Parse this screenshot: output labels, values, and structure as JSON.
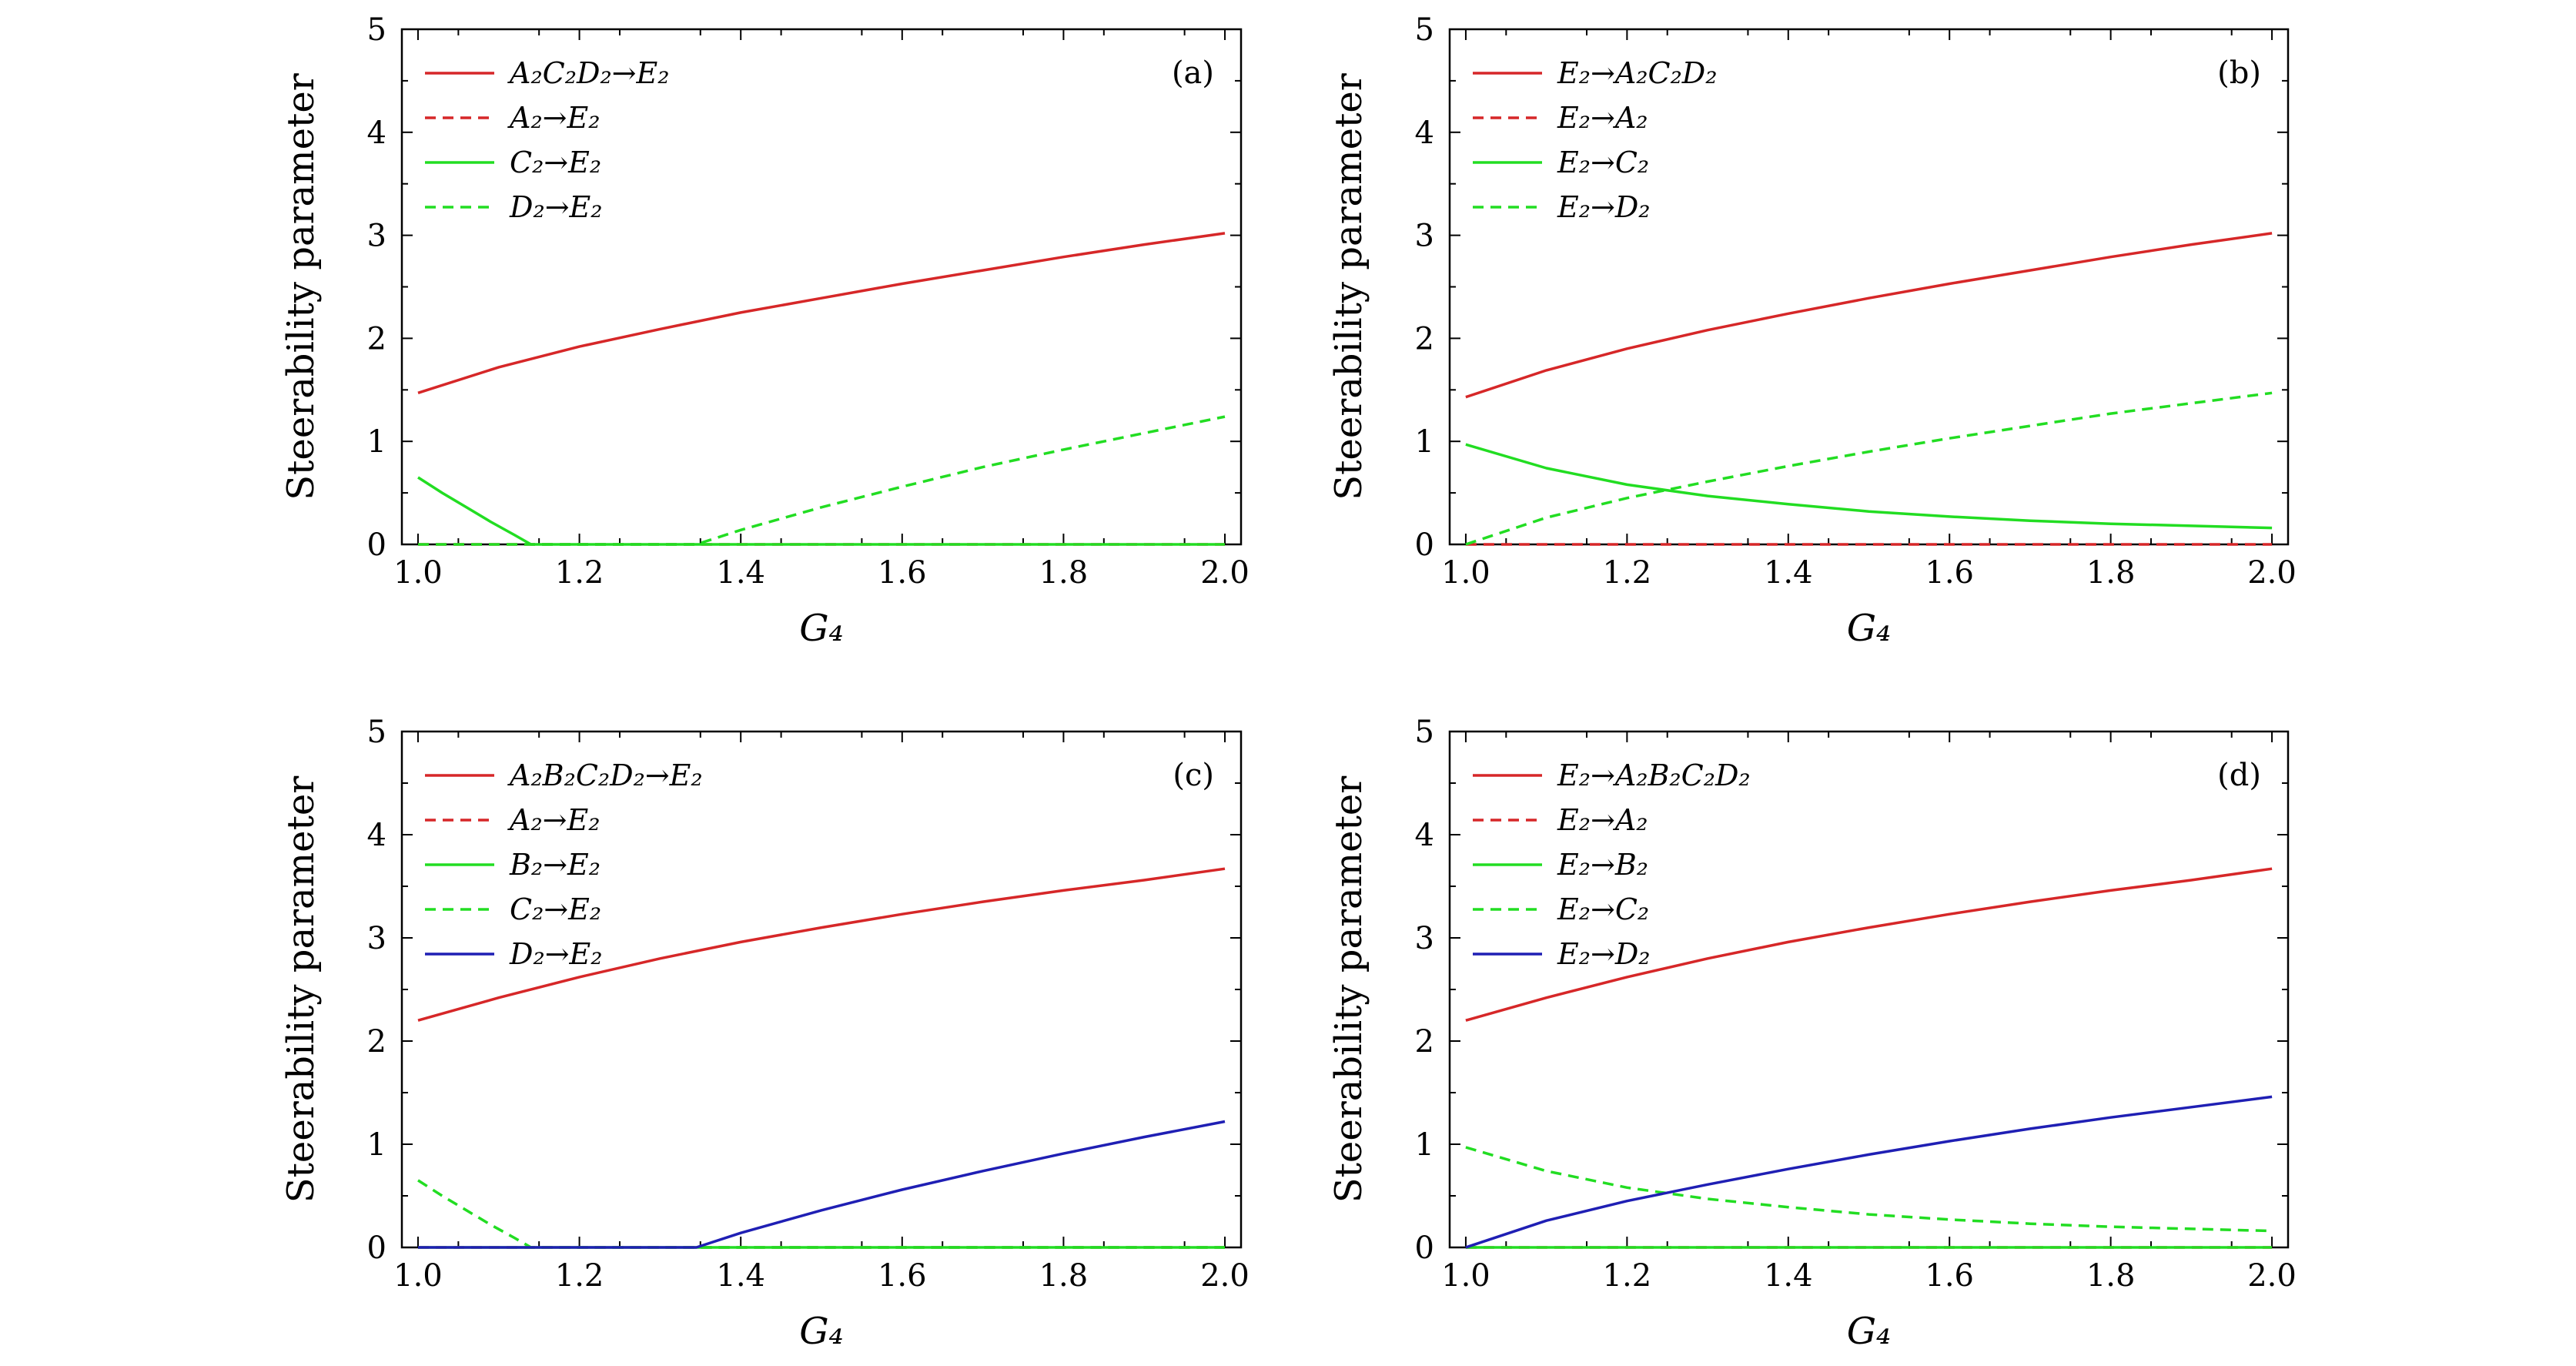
{
  "figure": {
    "ylabel": "Steerability parameter",
    "xlabel": "G₄"
  },
  "chart_data": [
    {
      "type": "line",
      "panel_label": "(a)",
      "xlabel": "G₄",
      "ylabel": "Steerability parameter",
      "xlim": [
        0.98,
        2.02
      ],
      "ylim": [
        0,
        5
      ],
      "xticks": [
        "1.0",
        "1.2",
        "1.4",
        "1.6",
        "1.8",
        "2.0"
      ],
      "yticks": [
        "0",
        "1",
        "2",
        "3",
        "4",
        "5"
      ],
      "legend_position": "top-left",
      "series": [
        {
          "name": "A₂C₂D₂→E₂",
          "color": "#d62728",
          "dash": "solid",
          "x": [
            1.0,
            1.1,
            1.2,
            1.3,
            1.4,
            1.5,
            1.6,
            1.7,
            1.8,
            1.9,
            2.0
          ],
          "y": [
            1.47,
            1.72,
            1.92,
            2.09,
            2.25,
            2.39,
            2.53,
            2.66,
            2.79,
            2.91,
            3.02
          ]
        },
        {
          "name": "A₂→E₂",
          "color": "#d62728",
          "dash": "dashed",
          "x": [
            1.0,
            2.0
          ],
          "y": [
            0.0,
            0.0
          ]
        },
        {
          "name": "C₂→E₂",
          "color": "#22dd22",
          "dash": "solid",
          "x": [
            1.0,
            1.03,
            1.06,
            1.09,
            1.12,
            1.14,
            1.2,
            1.4,
            1.6,
            1.8,
            2.0
          ],
          "y": [
            0.65,
            0.5,
            0.36,
            0.22,
            0.09,
            0.0,
            0.0,
            0.0,
            0.0,
            0.0,
            0.0
          ]
        },
        {
          "name": "D₂→E₂",
          "color": "#22dd22",
          "dash": "dashed",
          "x": [
            1.0,
            1.2,
            1.345,
            1.4,
            1.5,
            1.6,
            1.7,
            1.8,
            1.9,
            2.0
          ],
          "y": [
            0.0,
            0.0,
            0.0,
            0.14,
            0.36,
            0.56,
            0.75,
            0.92,
            1.08,
            1.24
          ]
        }
      ]
    },
    {
      "type": "line",
      "panel_label": "(b)",
      "xlabel": "G₄",
      "ylabel": "Steerability parameter",
      "xlim": [
        0.98,
        2.02
      ],
      "ylim": [
        0,
        5
      ],
      "xticks": [
        "1.0",
        "1.2",
        "1.4",
        "1.6",
        "1.8",
        "2.0"
      ],
      "yticks": [
        "0",
        "1",
        "2",
        "3",
        "4",
        "5"
      ],
      "legend_position": "top-left",
      "series": [
        {
          "name": "E₂→A₂C₂D₂",
          "color": "#d62728",
          "dash": "solid",
          "x": [
            1.0,
            1.1,
            1.2,
            1.3,
            1.4,
            1.5,
            1.6,
            1.7,
            1.8,
            1.9,
            2.0
          ],
          "y": [
            1.43,
            1.69,
            1.9,
            2.08,
            2.24,
            2.39,
            2.53,
            2.66,
            2.79,
            2.91,
            3.02
          ]
        },
        {
          "name": "E₂→A₂",
          "color": "#d62728",
          "dash": "dashed",
          "x": [
            1.0,
            2.0
          ],
          "y": [
            0.0,
            0.0
          ]
        },
        {
          "name": "E₂→C₂",
          "color": "#22dd22",
          "dash": "solid",
          "x": [
            1.0,
            1.1,
            1.2,
            1.3,
            1.4,
            1.5,
            1.6,
            1.7,
            1.8,
            1.9,
            2.0
          ],
          "y": [
            0.97,
            0.74,
            0.58,
            0.47,
            0.39,
            0.32,
            0.27,
            0.23,
            0.2,
            0.18,
            0.16
          ]
        },
        {
          "name": "E₂→D₂",
          "color": "#22dd22",
          "dash": "dashed",
          "x": [
            1.0,
            1.1,
            1.2,
            1.3,
            1.4,
            1.5,
            1.6,
            1.7,
            1.8,
            1.9,
            2.0
          ],
          "y": [
            0.0,
            0.26,
            0.45,
            0.61,
            0.76,
            0.9,
            1.03,
            1.15,
            1.27,
            1.37,
            1.47
          ]
        }
      ]
    },
    {
      "type": "line",
      "panel_label": "(c)",
      "xlabel": "G₄",
      "ylabel": "Steerability parameter",
      "xlim": [
        0.98,
        2.02
      ],
      "ylim": [
        0,
        5
      ],
      "xticks": [
        "1.0",
        "1.2",
        "1.4",
        "1.6",
        "1.8",
        "2.0"
      ],
      "yticks": [
        "0",
        "1",
        "2",
        "3",
        "4",
        "5"
      ],
      "legend_position": "top-left",
      "series": [
        {
          "name": "A₂B₂C₂D₂→E₂",
          "color": "#d62728",
          "dash": "solid",
          "x": [
            1.0,
            1.1,
            1.2,
            1.3,
            1.4,
            1.5,
            1.6,
            1.7,
            1.8,
            1.9,
            2.0
          ],
          "y": [
            2.2,
            2.42,
            2.62,
            2.8,
            2.96,
            3.1,
            3.23,
            3.35,
            3.46,
            3.56,
            3.67
          ]
        },
        {
          "name": "A₂→E₂",
          "color": "#d62728",
          "dash": "dashed",
          "x": [
            1.0,
            2.0
          ],
          "y": [
            0.0,
            0.0
          ]
        },
        {
          "name": "B₂→E₂",
          "color": "#22dd22",
          "dash": "solid",
          "x": [
            1.0,
            2.0
          ],
          "y": [
            0.0,
            0.0
          ]
        },
        {
          "name": "C₂→E₂",
          "color": "#22dd22",
          "dash": "dashed",
          "x": [
            1.0,
            1.03,
            1.06,
            1.09,
            1.12,
            1.14,
            1.2,
            1.4,
            1.6,
            1.8,
            2.0
          ],
          "y": [
            0.65,
            0.5,
            0.36,
            0.22,
            0.09,
            0.0,
            0.0,
            0.0,
            0.0,
            0.0,
            0.0
          ]
        },
        {
          "name": "D₂→E₂",
          "color": "#1f1fb4",
          "dash": "solid",
          "x": [
            1.0,
            1.2,
            1.345,
            1.4,
            1.5,
            1.6,
            1.7,
            1.8,
            1.9,
            2.0
          ],
          "y": [
            0.0,
            0.0,
            0.0,
            0.14,
            0.36,
            0.56,
            0.74,
            0.91,
            1.07,
            1.22
          ]
        }
      ]
    },
    {
      "type": "line",
      "panel_label": "(d)",
      "xlabel": "G₄",
      "ylabel": "Steerability parameter",
      "xlim": [
        0.98,
        2.02
      ],
      "ylim": [
        0,
        5
      ],
      "xticks": [
        "1.0",
        "1.2",
        "1.4",
        "1.6",
        "1.8",
        "2.0"
      ],
      "yticks": [
        "0",
        "1",
        "2",
        "3",
        "4",
        "5"
      ],
      "legend_position": "top-left",
      "series": [
        {
          "name": "E₂→A₂B₂C₂D₂",
          "color": "#d62728",
          "dash": "solid",
          "x": [
            1.0,
            1.1,
            1.2,
            1.3,
            1.4,
            1.5,
            1.6,
            1.7,
            1.8,
            1.9,
            2.0
          ],
          "y": [
            2.2,
            2.42,
            2.62,
            2.8,
            2.96,
            3.1,
            3.23,
            3.35,
            3.46,
            3.56,
            3.67
          ]
        },
        {
          "name": "E₂→A₂",
          "color": "#d62728",
          "dash": "dashed",
          "x": [
            1.0,
            2.0
          ],
          "y": [
            0.0,
            0.0
          ]
        },
        {
          "name": "E₂→B₂",
          "color": "#22dd22",
          "dash": "solid",
          "x": [
            1.0,
            2.0
          ],
          "y": [
            0.0,
            0.0
          ]
        },
        {
          "name": "E₂→C₂",
          "color": "#22dd22",
          "dash": "dashed",
          "x": [
            1.0,
            1.1,
            1.2,
            1.3,
            1.4,
            1.5,
            1.6,
            1.7,
            1.8,
            1.9,
            2.0
          ],
          "y": [
            0.97,
            0.74,
            0.58,
            0.47,
            0.39,
            0.32,
            0.27,
            0.23,
            0.2,
            0.18,
            0.16
          ]
        },
        {
          "name": "E₂→D₂",
          "color": "#1f1fb4",
          "dash": "solid",
          "x": [
            1.0,
            1.1,
            1.2,
            1.3,
            1.4,
            1.5,
            1.6,
            1.7,
            1.8,
            1.9,
            2.0
          ],
          "y": [
            0.0,
            0.26,
            0.45,
            0.61,
            0.76,
            0.9,
            1.03,
            1.15,
            1.26,
            1.36,
            1.46
          ]
        }
      ]
    }
  ]
}
